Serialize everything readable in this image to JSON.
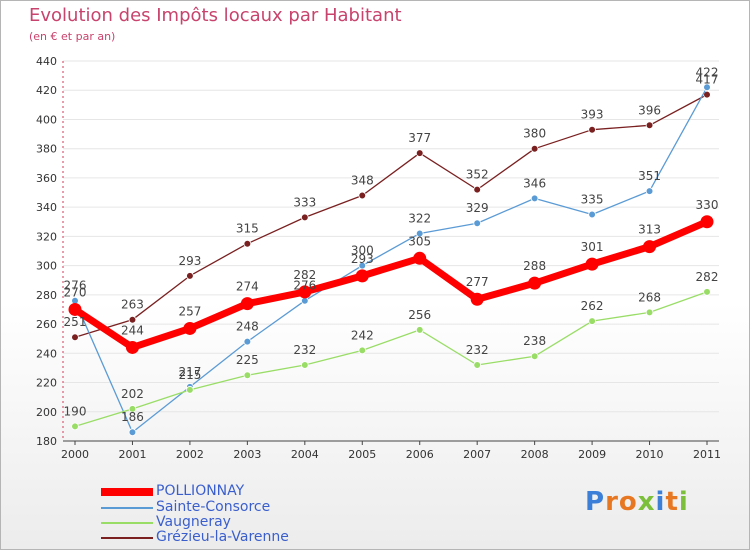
{
  "header": {
    "title": "Evolution des Impôts locaux par Habitant",
    "subtitle": "(en € et par an)"
  },
  "chart_data": {
    "type": "line",
    "title": "Evolution des Impôts locaux par Habitant",
    "subtitle": "(en € et par an)",
    "xlabel": "",
    "ylabel": "",
    "categories": [
      "2000",
      "2001",
      "2002",
      "2003",
      "2004",
      "2005",
      "2006",
      "2007",
      "2008",
      "2009",
      "2010",
      "2011"
    ],
    "ylim": [
      180,
      440
    ],
    "yticks": [
      180,
      200,
      220,
      240,
      260,
      280,
      300,
      320,
      340,
      360,
      380,
      400,
      420,
      440
    ],
    "series": [
      {
        "name": "POLLIONNAY",
        "color": "#ff0000",
        "values": [
          270,
          244,
          257,
          274,
          282,
          293,
          305,
          277,
          288,
          301,
          313,
          330
        ]
      },
      {
        "name": "Sainte-Consorce",
        "color": "#5b9bd5",
        "values": [
          276,
          186,
          217,
          248,
          276,
          300,
          322,
          329,
          346,
          335,
          351,
          422
        ]
      },
      {
        "name": "Vaugneray",
        "color": "#99dd66",
        "values": [
          190,
          202,
          215,
          225,
          232,
          242,
          256,
          232,
          238,
          262,
          268,
          282
        ]
      },
      {
        "name": "Grézieu-la-Varenne",
        "color": "#7a2020",
        "values": [
          251,
          263,
          293,
          315,
          333,
          348,
          377,
          352,
          380,
          393,
          396,
          417
        ]
      }
    ],
    "legend": "bottom-left"
  },
  "legend": {
    "items": [
      {
        "label": "POLLIONNAY",
        "color": "#ff0000"
      },
      {
        "label": "Sainte-Consorce",
        "color": "#5b9bd5"
      },
      {
        "label": "Vaugneray",
        "color": "#99dd66"
      },
      {
        "label": "Grézieu-la-Varenne",
        "color": "#7a2020"
      }
    ]
  },
  "logo": {
    "text": "Proxiti",
    "letters": [
      {
        "ch": "P",
        "color": "#3b7fd9"
      },
      {
        "ch": "r",
        "color": "#e87722"
      },
      {
        "ch": "o",
        "color": "#e87722"
      },
      {
        "ch": "x",
        "color": "#7bbf3a"
      },
      {
        "ch": "i",
        "color": "#3b7fd9"
      },
      {
        "ch": "t",
        "color": "#e87722"
      },
      {
        "ch": "i",
        "color": "#7bbf3a"
      }
    ]
  }
}
